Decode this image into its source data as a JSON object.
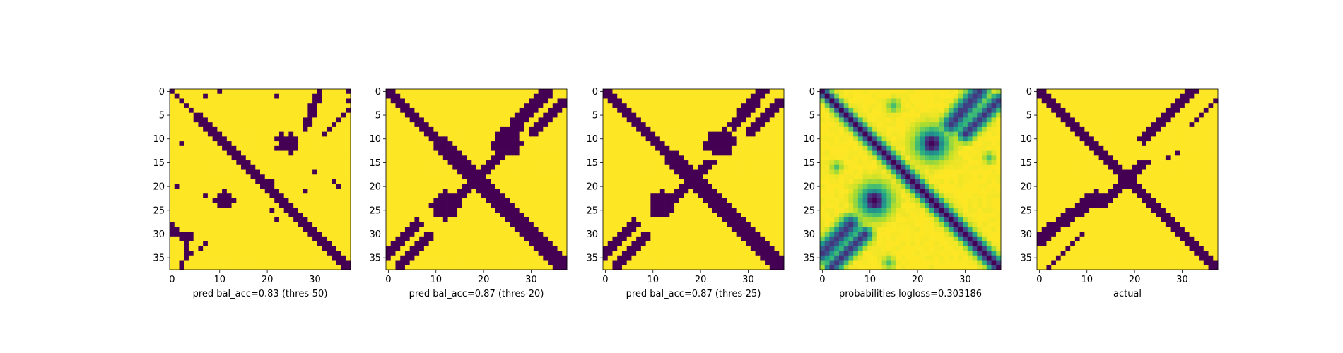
{
  "figure": {
    "background": "#ffffff"
  },
  "palette": {
    "viridis": [
      "#440154",
      "#482878",
      "#3e4989",
      "#31688e",
      "#26828e",
      "#1f9e89",
      "#35b779",
      "#6ece58",
      "#b5de2b",
      "#fde725"
    ]
  },
  "chart_data": [
    {
      "type": "heatmap",
      "xlabel": "pred bal_acc=0.83 (thres-50)",
      "size": 38,
      "xticks": [
        0,
        10,
        20,
        30
      ],
      "yticks": [
        0,
        5,
        10,
        15,
        20,
        25,
        30,
        35
      ],
      "value_range": [
        0,
        1
      ],
      "colormap": "viridis",
      "pattern": {
        "kind": "binary",
        "seed": 3,
        "diag_half_width": 1.6,
        "diag_start_width": 0.8,
        "anti_half_width": 0,
        "blobs": [
          {
            "r": 11,
            "c": 24,
            "radius": 2.2
          },
          {
            "r": 23,
            "c": 11,
            "radius": 2.0
          }
        ],
        "segments": [
          {
            "r0": 0,
            "c0": 31,
            "r1": 8,
            "c1": 28,
            "width": 0.9
          },
          {
            "r0": 4,
            "c0": 37,
            "r1": 9,
            "c1": 32,
            "width": 0.4
          },
          {
            "r0": 29,
            "c0": 0,
            "r1": 31,
            "c1": 3,
            "width": 1.0
          },
          {
            "r0": 30,
            "c0": 4,
            "r1": 37,
            "c1": 2,
            "width": 0.4
          },
          {
            "r0": 32,
            "c0": 7,
            "r1": 35,
            "c1": 3,
            "width": 0.4
          }
        ],
        "noise": 0.02
      }
    },
    {
      "type": "heatmap",
      "xlabel": "pred bal_acc=0.87 (thres-20)",
      "size": 38,
      "xticks": [
        0,
        10,
        20,
        30
      ],
      "yticks": [
        0,
        5,
        10,
        15,
        20,
        25,
        30,
        35
      ],
      "value_range": [
        0,
        1
      ],
      "colormap": "viridis",
      "pattern": {
        "kind": "binary",
        "seed": 7,
        "diag_half_width": 2.3,
        "diag_start_width": 1.6,
        "anti_half_width": 1.6,
        "anti_range": [
          16,
          21
        ],
        "blobs": [
          {
            "r": 11,
            "c": 25,
            "radius": 3.2
          },
          {
            "r": 24,
            "c": 12,
            "radius": 3.0
          }
        ],
        "segments": [
          {
            "r0": 0,
            "c0": 33,
            "r1": 7,
            "c1": 27,
            "width": 1.5
          },
          {
            "r0": 2,
            "c0": 37,
            "r1": 9,
            "c1": 30,
            "width": 0.9
          },
          {
            "r0": 28,
            "c0": 6,
            "r1": 34,
            "c1": 0,
            "width": 1.4
          },
          {
            "r0": 30,
            "c0": 9,
            "r1": 37,
            "c1": 2,
            "width": 0.9
          }
        ],
        "noise": 0.0
      }
    },
    {
      "type": "heatmap",
      "xlabel": "pred bal_acc=0.87 (thres-25)",
      "size": 38,
      "xticks": [
        0,
        10,
        20,
        30
      ],
      "yticks": [
        0,
        5,
        10,
        15,
        20,
        25,
        30,
        35
      ],
      "value_range": [
        0,
        1
      ],
      "colormap": "viridis",
      "pattern": {
        "kind": "binary",
        "seed": 11,
        "diag_half_width": 2.2,
        "diag_start_width": 1.5,
        "anti_half_width": 1.4,
        "anti_range": [
          17,
          20
        ],
        "blobs": [
          {
            "r": 11,
            "c": 24,
            "radius": 3.0
          },
          {
            "r": 24,
            "c": 12,
            "radius": 2.8
          }
        ],
        "segments": [
          {
            "r0": 0,
            "c0": 33,
            "r1": 7,
            "c1": 27,
            "width": 1.3
          },
          {
            "r0": 2,
            "c0": 37,
            "r1": 9,
            "c1": 30,
            "width": 0.8
          },
          {
            "r0": 28,
            "c0": 6,
            "r1": 34,
            "c1": 0,
            "width": 1.3
          },
          {
            "r0": 30,
            "c0": 9,
            "r1": 37,
            "c1": 2,
            "width": 0.8
          }
        ],
        "noise": 0.0
      }
    },
    {
      "type": "heatmap",
      "xlabel": "probabilities logloss=0.303186",
      "size": 38,
      "xticks": [
        0,
        10,
        20,
        30
      ],
      "yticks": [
        0,
        5,
        10,
        15,
        20,
        25,
        30,
        35
      ],
      "value_range": [
        0,
        1
      ],
      "colormap": "viridis",
      "pattern": {
        "kind": "continuous",
        "seed": 19,
        "diag_half_width": 2.2,
        "diag_start_width": 1.6,
        "anti_half_width": 0,
        "blobs": [
          {
            "r": 11,
            "c": 23,
            "radius": 3.8
          },
          {
            "r": 23,
            "c": 11,
            "radius": 3.8
          }
        ],
        "segments": [
          {
            "r0": 0,
            "c0": 33,
            "r1": 7,
            "c1": 27,
            "width": 1.6
          },
          {
            "r0": 2,
            "c0": 37,
            "r1": 9,
            "c1": 30,
            "width": 1.2
          },
          {
            "r0": 28,
            "c0": 6,
            "r1": 34,
            "c1": 0,
            "width": 1.6
          },
          {
            "r0": 30,
            "c0": 9,
            "r1": 37,
            "c1": 2,
            "width": 1.2
          }
        ],
        "spots": [
          {
            "r": 3,
            "c": 15,
            "radius": 1.3
          },
          {
            "r": 16,
            "c": 3,
            "radius": 1.1
          },
          {
            "r": 14,
            "c": 35,
            "radius": 1.1
          },
          {
            "r": 36,
            "c": 14,
            "radius": 1.2
          }
        ],
        "noise": 0.04
      }
    },
    {
      "type": "heatmap",
      "xlabel": "actual",
      "size": 38,
      "xticks": [
        0,
        10,
        20,
        30
      ],
      "yticks": [
        0,
        5,
        10,
        15,
        20,
        25,
        30,
        35
      ],
      "value_range": [
        0,
        1
      ],
      "colormap": "viridis",
      "pattern": {
        "kind": "binary",
        "seed": 23,
        "diag_half_width": 1.9,
        "diag_start_width": 1.0,
        "anti_half_width": 1.2,
        "anti_range": [
          17,
          22
        ],
        "blobs": [],
        "segments": [
          {
            "r0": 0,
            "c0": 32,
            "r1": 10,
            "c1": 22,
            "width": 1.4
          },
          {
            "r0": 2,
            "c0": 37,
            "r1": 7,
            "c1": 32,
            "width": 0.5
          },
          {
            "r0": 22,
            "c0": 12,
            "r1": 31,
            "c1": 0,
            "width": 1.4
          },
          {
            "r0": 30,
            "c0": 9,
            "r1": 37,
            "c1": 2,
            "width": 0.6
          },
          {
            "r0": 13,
            "c0": 29,
            "r1": 14,
            "c1": 27,
            "width": 0.4
          },
          {
            "r0": 24,
            "c0": 10,
            "r1": 26,
            "c1": 9,
            "width": 0.4
          }
        ],
        "noise": 0.0
      }
    }
  ]
}
